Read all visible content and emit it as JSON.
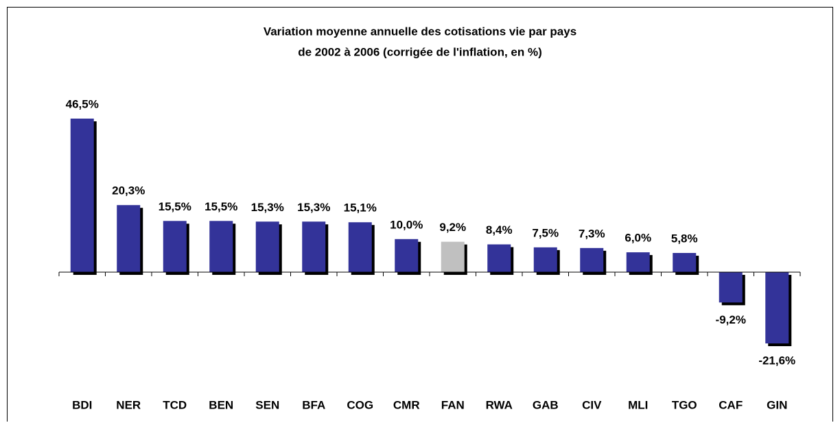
{
  "chart_data": {
    "type": "bar",
    "title": [
      "Variation moyenne annuelle des cotisations vie par pays",
      "de 2002 à 2006 (corrigée de l'inflation, en %)"
    ],
    "categories": [
      "BDI",
      "NER",
      "TCD",
      "BEN",
      "SEN",
      "BFA",
      "COG",
      "CMR",
      "FAN",
      "RWA",
      "GAB",
      "CIV",
      "MLI",
      "TGO",
      "CAF",
      "GIN"
    ],
    "values": [
      46.5,
      20.3,
      15.5,
      15.5,
      15.3,
      15.3,
      15.1,
      10.0,
      9.2,
      8.4,
      7.5,
      7.3,
      6.0,
      5.8,
      -9.2,
      -21.6
    ],
    "value_labels": [
      "46,5%",
      "20,3%",
      "15,5%",
      "15,5%",
      "15,3%",
      "15,3%",
      "15,1%",
      "10,0%",
      "9,2%",
      "8,4%",
      "7,5%",
      "7,3%",
      "6,0%",
      "5,8%",
      "-9,2%",
      "-21,6%"
    ],
    "colors": [
      "#333399",
      "#333399",
      "#333399",
      "#333399",
      "#333399",
      "#333399",
      "#333399",
      "#333399",
      "#c0c0c0",
      "#333399",
      "#333399",
      "#333399",
      "#333399",
      "#333399",
      "#333399",
      "#333399"
    ],
    "shadow_color": "#000000"
  }
}
